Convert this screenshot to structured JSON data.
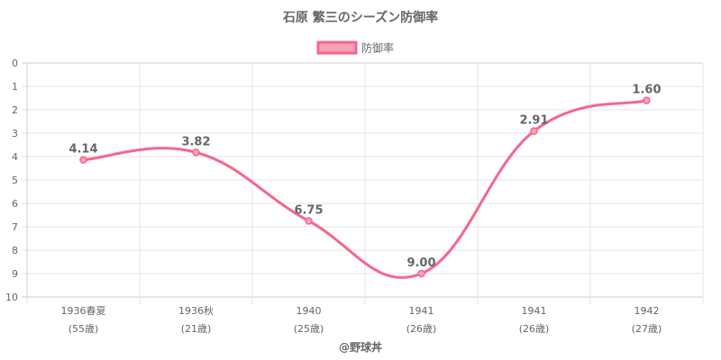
{
  "chart_data": {
    "type": "line",
    "title": "石原 繁三のシーズン防御率",
    "categories": [
      [
        "1936春夏",
        "(55歳)"
      ],
      [
        "1936秋",
        "(21歳)"
      ],
      [
        "1940",
        "(25歳)"
      ],
      [
        "1941",
        "(26歳)"
      ],
      [
        "1941",
        "(26歳)"
      ],
      [
        "1942",
        "(27歳)"
      ]
    ],
    "series": [
      {
        "name": "防御率",
        "values": [
          4.14,
          3.82,
          6.75,
          9.0,
          2.91,
          1.6
        ],
        "labels": [
          "4.14",
          "3.82",
          "6.75",
          "9.00",
          "2.91",
          "1.60"
        ],
        "color": "#f5668c",
        "fill": "#f7a1b8"
      }
    ],
    "ylim": [
      0,
      10
    ],
    "y_reversed": true,
    "yticks": [
      "0",
      "1",
      "2",
      "3",
      "4",
      "5",
      "6",
      "7",
      "8",
      "9",
      "10"
    ],
    "grid": true,
    "legend": "top-center"
  },
  "credit": "@野球丼"
}
